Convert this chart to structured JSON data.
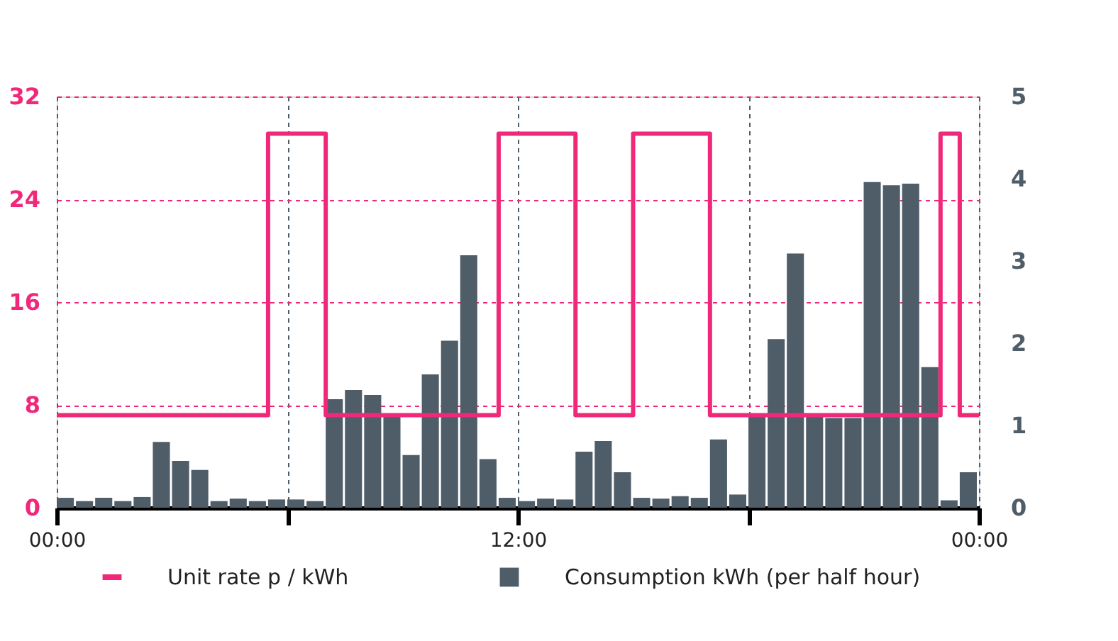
{
  "chart_data": {
    "type": "bar",
    "xlim": [
      0,
      24
    ],
    "xticks": [
      {
        "value": 0,
        "label": "00:00"
      },
      {
        "value": 6,
        "label": null
      },
      {
        "value": 12,
        "label": "12:00"
      },
      {
        "value": 18,
        "label": null
      },
      {
        "value": 24,
        "label": "00:00"
      }
    ],
    "ylim": [
      0,
      32
    ],
    "yticks": [
      0,
      8,
      16,
      24,
      32
    ],
    "y2lim": [
      0,
      5
    ],
    "y2ticks": [
      0,
      1,
      2,
      3,
      4,
      5
    ],
    "grid": true,
    "legend": "bottom",
    "series": [
      {
        "name": "Unit rate p / kWh",
        "type": "line",
        "color": "#f0287a",
        "x": [
          0,
          5.5,
          5.5,
          7,
          7,
          11.5,
          11.5,
          13.5,
          13.5,
          15,
          15,
          17,
          17,
          23,
          23,
          23.5,
          23.5,
          24
        ],
        "values": [
          7.2,
          7.2,
          29.1,
          29.1,
          7.2,
          7.2,
          29.1,
          29.1,
          7.2,
          7.2,
          29.1,
          29.1,
          7.2,
          7.2,
          29.1,
          29.1,
          7.2,
          7.2
        ]
      },
      {
        "name": "Consumption kWh (per half hour)",
        "axis": "y2",
        "color": "#4f5d69",
        "x": [
          0.25,
          0.75,
          1.25,
          1.75,
          2.25,
          2.75,
          3.25,
          3.75,
          4.25,
          4.75,
          5.25,
          5.75,
          6.25,
          6.75,
          7.25,
          7.75,
          8.25,
          8.75,
          9.25,
          9.75,
          10.25,
          10.75,
          11.25,
          11.75,
          12.25,
          12.75,
          13.25,
          13.75,
          14.25,
          14.75,
          15.25,
          15.75,
          16.25,
          16.75,
          17.25,
          17.75,
          18.25,
          18.75,
          19.25,
          19.75,
          20.25,
          20.75,
          21.25,
          21.75,
          22.25,
          22.75,
          23.25,
          23.75
        ],
        "values": [
          0.12,
          0.08,
          0.12,
          0.08,
          0.13,
          0.8,
          0.57,
          0.46,
          0.08,
          0.11,
          0.08,
          0.1,
          0.1,
          0.08,
          1.32,
          1.43,
          1.37,
          1.12,
          0.64,
          1.62,
          2.03,
          3.07,
          0.59,
          0.12,
          0.08,
          0.11,
          0.1,
          0.68,
          0.81,
          0.43,
          0.12,
          0.11,
          0.14,
          0.12,
          0.83,
          0.16,
          1.12,
          2.05,
          3.09,
          1.11,
          1.09,
          1.09,
          3.96,
          3.92,
          3.94,
          1.71,
          0.09,
          0.43
        ]
      }
    ]
  }
}
